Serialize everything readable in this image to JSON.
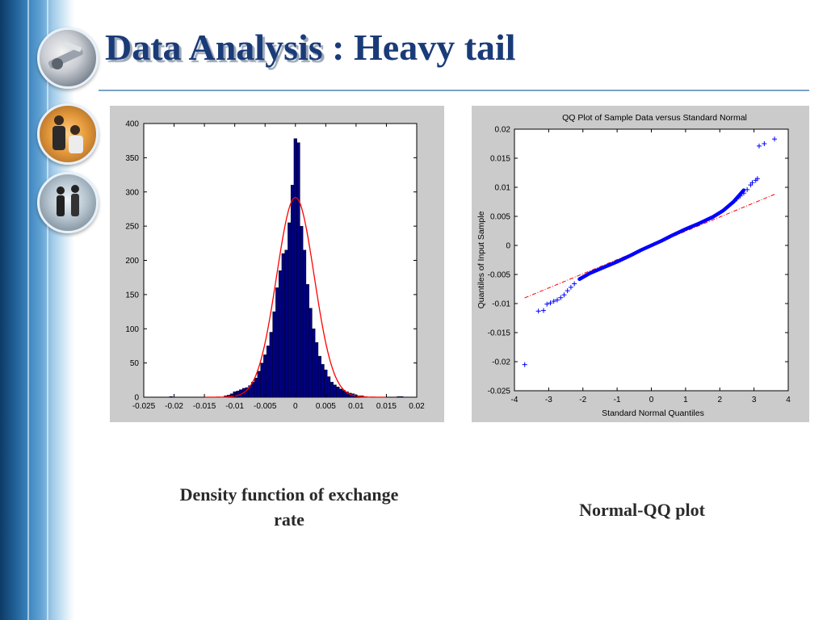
{
  "slide": {
    "title_main": "Data Analysis",
    "title_rest": " : Heavy tail"
  },
  "colors": {
    "title": "#1a3b78",
    "bar_fill": "#000080",
    "density_curve": "#ff0000",
    "qq_points": "#0000ff",
    "qq_reference_line": "#ff0000",
    "panel_background": "#cbcbcb"
  },
  "sidebar": {
    "photos": [
      {
        "icon": "office-supplies-photo-icon"
      },
      {
        "icon": "business-people-photo-icon"
      },
      {
        "icon": "walking-people-photo-icon"
      }
    ]
  },
  "captions": {
    "left_line1": "Density function of exchange",
    "left_line2": "rate",
    "right": "Normal-QQ plot"
  },
  "chart_data": [
    {
      "type": "bar",
      "title": "",
      "xlabel": "",
      "ylabel": "",
      "xlim": [
        -0.025,
        0.02
      ],
      "ylim": [
        0,
        400
      ],
      "grid": false,
      "x_ticks": [
        "-0.025",
        "-0.02",
        "-0.015",
        "-0.01",
        "-0.005",
        "0",
        "0.005",
        "0.01",
        "0.015",
        "0.02"
      ],
      "y_ticks": [
        "0",
        "50",
        "100",
        "150",
        "200",
        "250",
        "300",
        "350",
        "400"
      ],
      "bin_width": 0.0005,
      "bins": [
        {
          "x": -0.0205,
          "count": 1
        },
        {
          "x": -0.0115,
          "count": 2
        },
        {
          "x": -0.011,
          "count": 3
        },
        {
          "x": -0.0105,
          "count": 5
        },
        {
          "x": -0.01,
          "count": 8
        },
        {
          "x": -0.0095,
          "count": 9
        },
        {
          "x": -0.009,
          "count": 11
        },
        {
          "x": -0.0085,
          "count": 13
        },
        {
          "x": -0.008,
          "count": 14
        },
        {
          "x": -0.0075,
          "count": 17
        },
        {
          "x": -0.007,
          "count": 22
        },
        {
          "x": -0.0065,
          "count": 28
        },
        {
          "x": -0.006,
          "count": 38
        },
        {
          "x": -0.0055,
          "count": 50
        },
        {
          "x": -0.005,
          "count": 62
        },
        {
          "x": -0.0045,
          "count": 75
        },
        {
          "x": -0.004,
          "count": 95
        },
        {
          "x": -0.0035,
          "count": 125
        },
        {
          "x": -0.003,
          "count": 160
        },
        {
          "x": -0.0025,
          "count": 185
        },
        {
          "x": -0.002,
          "count": 210
        },
        {
          "x": -0.0015,
          "count": 215
        },
        {
          "x": -0.001,
          "count": 255
        },
        {
          "x": -0.0005,
          "count": 310
        },
        {
          "x": 0.0,
          "count": 378
        },
        {
          "x": 0.0005,
          "count": 372
        },
        {
          "x": 0.001,
          "count": 250
        },
        {
          "x": 0.0015,
          "count": 215
        },
        {
          "x": 0.002,
          "count": 165
        },
        {
          "x": 0.0025,
          "count": 130
        },
        {
          "x": 0.003,
          "count": 100
        },
        {
          "x": 0.0035,
          "count": 80
        },
        {
          "x": 0.004,
          "count": 60
        },
        {
          "x": 0.0045,
          "count": 48
        },
        {
          "x": 0.005,
          "count": 40
        },
        {
          "x": 0.0055,
          "count": 30
        },
        {
          "x": 0.006,
          "count": 22
        },
        {
          "x": 0.0065,
          "count": 18
        },
        {
          "x": 0.007,
          "count": 15
        },
        {
          "x": 0.0075,
          "count": 12
        },
        {
          "x": 0.008,
          "count": 10
        },
        {
          "x": 0.0085,
          "count": 8
        },
        {
          "x": 0.009,
          "count": 6
        },
        {
          "x": 0.0095,
          "count": 5
        },
        {
          "x": 0.01,
          "count": 3
        },
        {
          "x": 0.0105,
          "count": 2
        },
        {
          "x": 0.011,
          "count": 2
        },
        {
          "x": 0.0115,
          "count": 1
        },
        {
          "x": 0.017,
          "count": 1
        },
        {
          "x": 0.0175,
          "count": 1
        }
      ],
      "density_curve": {
        "mean": 0.0,
        "std": 0.0031,
        "peak": 292
      }
    },
    {
      "type": "scatter",
      "title": "QQ Plot of Sample Data versus Standard Normal",
      "xlabel": "Standard Normal Quantiles",
      "ylabel": "Quantiles of Input Sample",
      "xlim": [
        -4,
        4
      ],
      "ylim": [
        -0.025,
        0.02
      ],
      "grid": false,
      "x_ticks": [
        "-4",
        "-3",
        "-2",
        "-1",
        "0",
        "1",
        "2",
        "3",
        "4"
      ],
      "y_ticks": [
        "-0.025",
        "-0.02",
        "-0.015",
        "-0.01",
        "-0.005",
        "0",
        "0.005",
        "0.01",
        "0.015",
        "0.02"
      ],
      "quantile_curve": [
        [
          -2.1,
          -0.0058
        ],
        [
          -1.8,
          -0.0048
        ],
        [
          -1.4,
          -0.0038
        ],
        [
          -1.0,
          -0.0028
        ],
        [
          -0.6,
          -0.0017
        ],
        [
          -0.3,
          -0.0008
        ],
        [
          0.0,
          0.0
        ],
        [
          0.3,
          0.0008
        ],
        [
          0.6,
          0.0017
        ],
        [
          1.0,
          0.0028
        ],
        [
          1.4,
          0.0038
        ],
        [
          1.8,
          0.0049
        ],
        [
          2.1,
          0.006
        ],
        [
          2.4,
          0.0075
        ],
        [
          2.7,
          0.0095
        ]
      ],
      "tail_points": [
        [
          -3.7,
          -0.0205
        ],
        [
          -3.3,
          -0.0113
        ],
        [
          -3.15,
          -0.0112
        ],
        [
          -3.05,
          -0.0101
        ],
        [
          -2.95,
          -0.0099
        ],
        [
          -2.85,
          -0.0096
        ],
        [
          -2.75,
          -0.0094
        ],
        [
          -2.65,
          -0.009
        ],
        [
          -2.55,
          -0.0085
        ],
        [
          -2.45,
          -0.0078
        ],
        [
          -2.35,
          -0.0072
        ],
        [
          -2.25,
          -0.0066
        ],
        [
          2.5,
          0.008
        ],
        [
          2.6,
          0.0085
        ],
        [
          2.7,
          0.009
        ],
        [
          2.8,
          0.0096
        ],
        [
          2.9,
          0.0104
        ],
        [
          2.95,
          0.0108
        ],
        [
          3.05,
          0.0112
        ],
        [
          3.1,
          0.0115
        ],
        [
          3.15,
          0.0171
        ],
        [
          3.3,
          0.0175
        ],
        [
          3.6,
          0.0183
        ]
      ],
      "reference_line": {
        "slope": 0.00244,
        "intercept": 0.0,
        "x_range": [
          -3.7,
          3.6
        ]
      }
    }
  ]
}
